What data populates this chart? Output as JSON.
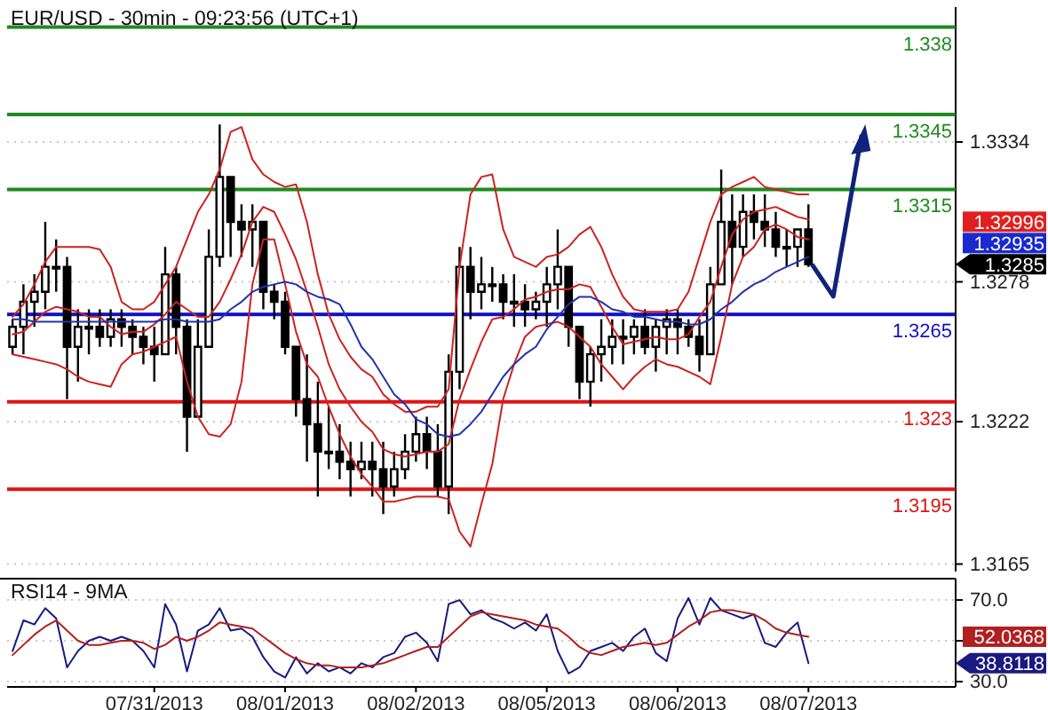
{
  "chart_data": [
    {
      "type": "candlestick",
      "title": "EUR/USD - 30min - 09:23:56 (UTC+1)",
      "color": "#000000",
      "categories": [
        null,
        null,
        null,
        null,
        null,
        null,
        null,
        null,
        null,
        null,
        null,
        null,
        null,
        null,
        null,
        null,
        null,
        null,
        null,
        null,
        null,
        null,
        null,
        null,
        null,
        null,
        null,
        null,
        null,
        null,
        null,
        null,
        null,
        null,
        null,
        null,
        null,
        null,
        null,
        null,
        null,
        null,
        null,
        null,
        null,
        null,
        null,
        null,
        null,
        null,
        null,
        null,
        null,
        null,
        null,
        null,
        null,
        null,
        null,
        null,
        null,
        null,
        null,
        null,
        null,
        null,
        null,
        null,
        null,
        null,
        null,
        null,
        null,
        null,
        null,
        null,
        null,
        null,
        null,
        null,
        null,
        null,
        null,
        null,
        null,
        null,
        null
      ],
      "ohlc": [
        [
          1.3252,
          1.3263,
          1.3249,
          1.326
        ],
        [
          1.326,
          1.3277,
          1.3249,
          1.327
        ],
        [
          1.327,
          1.3281,
          1.326,
          1.3274
        ],
        [
          1.3274,
          1.3302,
          1.3267,
          1.3284
        ],
        [
          1.3284,
          1.3295,
          1.3274,
          1.3284
        ],
        [
          1.3284,
          1.3288,
          1.3231,
          1.3252
        ],
        [
          1.3252,
          1.3267,
          1.3238,
          1.326
        ],
        [
          1.326,
          1.3267,
          1.3249,
          1.326
        ],
        [
          1.326,
          1.3267,
          1.3252,
          1.3256
        ],
        [
          1.3256,
          1.3267,
          1.3252,
          1.3263
        ],
        [
          1.3263,
          1.3267,
          1.3252,
          1.326
        ],
        [
          1.326,
          1.3263,
          1.3249,
          1.3256
        ],
        [
          1.3256,
          1.326,
          1.3245,
          1.3252
        ],
        [
          1.3252,
          1.326,
          1.3238,
          1.3249
        ],
        [
          1.3249,
          1.3292,
          1.3249,
          1.3281
        ],
        [
          1.3281,
          1.3284,
          1.3249,
          1.326
        ],
        [
          1.326,
          1.3263,
          1.321,
          1.3224
        ],
        [
          1.3224,
          1.3263,
          1.3224,
          1.3252
        ],
        [
          1.3252,
          1.3299,
          1.3252,
          1.3288
        ],
        [
          1.3288,
          1.3341,
          1.3284,
          1.332
        ],
        [
          1.332,
          1.332,
          1.3288,
          1.3302
        ],
        [
          1.3302,
          1.3309,
          1.3288,
          1.3299
        ],
        [
          1.3299,
          1.3309,
          1.3284,
          1.3302
        ],
        [
          1.3302,
          1.3302,
          1.3267,
          1.3274
        ],
        [
          1.3274,
          1.3277,
          1.3263,
          1.327
        ],
        [
          1.327,
          1.3274,
          1.3249,
          1.3252
        ],
        [
          1.3252,
          1.3252,
          1.3224,
          1.3231
        ],
        [
          1.3231,
          1.3249,
          1.3206,
          1.3221
        ],
        [
          1.3221,
          1.3238,
          1.3192,
          1.321
        ],
        [
          1.321,
          1.3228,
          1.3203,
          1.321
        ],
        [
          1.321,
          1.3221,
          1.3199,
          1.3206
        ],
        [
          1.3206,
          1.3214,
          1.3192,
          1.3203
        ],
        [
          1.3203,
          1.3214,
          1.3199,
          1.3206
        ],
        [
          1.3206,
          1.3214,
          1.3192,
          1.3203
        ],
        [
          1.3203,
          1.3214,
          1.3185,
          1.3196
        ],
        [
          1.3196,
          1.321,
          1.3192,
          1.3203
        ],
        [
          1.3203,
          1.3217,
          1.3199,
          1.321
        ],
        [
          1.321,
          1.3224,
          1.3206,
          1.3217
        ],
        [
          1.3217,
          1.3224,
          1.3203,
          1.321
        ],
        [
          1.321,
          1.3221,
          1.3192,
          1.3196
        ],
        [
          1.3196,
          1.3249,
          1.3185,
          1.3242
        ],
        [
          1.3242,
          1.3292,
          1.3235,
          1.3284
        ],
        [
          1.3284,
          1.3292,
          1.3263,
          1.3274
        ],
        [
          1.3274,
          1.3288,
          1.3267,
          1.3277
        ],
        [
          1.3277,
          1.3284,
          1.327,
          1.3277
        ],
        [
          1.3277,
          1.3281,
          1.3263,
          1.327
        ],
        [
          1.327,
          1.3281,
          1.326,
          1.327
        ],
        [
          1.327,
          1.3277,
          1.326,
          1.3267
        ],
        [
          1.3267,
          1.3274,
          1.3263,
          1.327
        ],
        [
          1.327,
          1.3284,
          1.326,
          1.3277
        ],
        [
          1.3277,
          1.3299,
          1.3267,
          1.3284
        ],
        [
          1.3284,
          1.3284,
          1.3252,
          1.326
        ],
        [
          1.326,
          1.326,
          1.3231,
          1.3238
        ],
        [
          1.3238,
          1.3252,
          1.3228,
          1.3249
        ],
        [
          1.3249,
          1.3263,
          1.3238,
          1.3252
        ],
        [
          1.3252,
          1.3263,
          1.3245,
          1.3256
        ],
        [
          1.3256,
          1.3263,
          1.3245,
          1.3256
        ],
        [
          1.3256,
          1.3263,
          1.3249,
          1.326
        ],
        [
          1.326,
          1.3267,
          1.3249,
          1.3252
        ],
        [
          1.3252,
          1.3263,
          1.3242,
          1.326
        ],
        [
          1.326,
          1.3267,
          1.3249,
          1.3263
        ],
        [
          1.3263,
          1.3267,
          1.3249,
          1.326
        ],
        [
          1.326,
          1.3263,
          1.3252,
          1.3256
        ],
        [
          1.3256,
          1.3263,
          1.3242,
          1.3249
        ],
        [
          1.3249,
          1.3284,
          1.3249,
          1.3277
        ],
        [
          1.3277,
          1.3323,
          1.3277,
          1.3302
        ],
        [
          1.3302,
          1.3313,
          1.3277,
          1.3292
        ],
        [
          1.3292,
          1.3313,
          1.3288,
          1.3306
        ],
        [
          1.3306,
          1.3313,
          1.3295,
          1.3302
        ],
        [
          1.3302,
          1.3313,
          1.3292,
          1.3299
        ],
        [
          1.3299,
          1.3306,
          1.3288,
          1.3292
        ],
        [
          1.3292,
          1.3299,
          1.3284,
          1.3292
        ],
        [
          1.3292,
          1.3299,
          1.3284,
          1.3299
        ],
        [
          1.3299,
          1.3309,
          1.3284,
          1.3285
        ],
        null,
        null,
        null,
        null,
        null,
        null,
        null,
        null,
        null,
        null,
        null,
        null,
        null
      ],
      "series": [
        {
          "type": "line",
          "color": "#cc2222",
          "values": [
            1.3264,
            1.3269,
            1.3277,
            1.3286,
            1.3292,
            1.3292,
            1.3292,
            1.3292,
            1.3291,
            1.3284,
            1.327,
            1.3267,
            1.3267,
            1.327,
            1.3277,
            1.3284,
            1.3295,
            1.3306,
            1.3313,
            1.3323,
            1.3338,
            1.334,
            1.3327,
            1.3321,
            1.3318,
            1.3316,
            1.3317,
            1.3302,
            1.3281,
            1.3265,
            1.3255,
            1.3248,
            1.3243,
            1.324,
            1.3233,
            1.3229,
            1.3226,
            1.3226,
            1.3228,
            1.3228,
            1.3235,
            1.3284,
            1.3313,
            1.332,
            1.3321,
            1.3299,
            1.3288,
            1.3286,
            1.3284,
            1.3288,
            1.3289,
            1.3292,
            1.3297,
            1.33,
            1.3292,
            1.3281,
            1.3272,
            1.3267,
            1.3266,
            1.3266,
            1.3266,
            1.3267,
            1.3274,
            1.3288,
            1.3302,
            1.3313,
            1.3316,
            1.3318,
            1.332,
            1.3316,
            1.3315,
            1.3314,
            1.3313,
            1.3313,
            null,
            null,
            null,
            null,
            null,
            null,
            null,
            null,
            null,
            null,
            null,
            null,
            null
          ]
        },
        {
          "type": "line",
          "color": "#cc2222",
          "values": [
            1.3257,
            1.3258,
            1.3262,
            1.3266,
            1.3268,
            1.3267,
            1.3266,
            1.3264,
            1.3264,
            1.326,
            1.3257,
            1.3258,
            1.3258,
            1.3261,
            1.3265,
            1.327,
            1.3267,
            1.3264,
            1.3264,
            1.327,
            1.3279,
            1.3289,
            1.3302,
            1.3308,
            1.3306,
            1.3297,
            1.3287,
            1.3274,
            1.326,
            1.3245,
            1.3235,
            1.3228,
            1.3222,
            1.3218,
            1.3211,
            1.3209,
            1.3208,
            1.3209,
            1.321,
            1.321,
            1.3213,
            1.3231,
            1.3243,
            1.3254,
            1.3263,
            1.3264,
            1.3267,
            1.3271,
            1.3272,
            1.3274,
            1.3275,
            1.3275,
            1.3277,
            1.3276,
            1.3268,
            1.326,
            1.3253,
            1.3254,
            1.3255,
            1.3256,
            1.3255,
            1.3255,
            1.3257,
            1.3264,
            1.327,
            1.3284,
            1.3297,
            1.3303,
            1.3306,
            1.3307,
            1.3308,
            1.3306,
            1.3304,
            1.3303,
            null,
            null,
            null,
            null,
            null,
            null,
            null,
            null,
            null,
            null,
            null,
            null,
            null
          ]
        },
        {
          "type": "line",
          "color": "#cc2222",
          "values": [
            1.3249,
            1.3248,
            1.3247,
            1.3246,
            1.3245,
            1.3243,
            1.324,
            1.3238,
            1.3237,
            1.3236,
            1.3245,
            1.3249,
            1.325,
            1.3252,
            1.3254,
            1.3256,
            1.3238,
            1.3224,
            1.3217,
            1.3216,
            1.3221,
            1.3238,
            1.3277,
            1.3295,
            1.3295,
            1.3277,
            1.3258,
            1.3245,
            1.324,
            1.3228,
            1.3217,
            1.3208,
            1.3201,
            1.3196,
            1.319,
            1.319,
            1.3191,
            1.3192,
            1.3192,
            1.3192,
            1.3191,
            1.3178,
            1.3172,
            1.3189,
            1.3205,
            1.3231,
            1.3245,
            1.3256,
            1.326,
            1.3261,
            1.3262,
            1.326,
            1.3256,
            1.3252,
            1.3245,
            1.324,
            1.3235,
            1.324,
            1.3244,
            1.3247,
            1.3245,
            1.3244,
            1.3242,
            1.324,
            1.3237,
            1.3256,
            1.3277,
            1.3288,
            1.3292,
            1.3299,
            1.3301,
            1.3299,
            1.3296,
            1.3295,
            null,
            null,
            null,
            null,
            null,
            null,
            null,
            null,
            null,
            null,
            null,
            null,
            null
          ]
        },
        {
          "type": "line",
          "color": "#2233aa",
          "values": [
            1.3263,
            1.3263,
            1.3262,
            1.3262,
            1.3262,
            1.3262,
            1.3262,
            1.3262,
            1.3262,
            1.3262,
            1.3262,
            1.3262,
            1.3262,
            1.3262,
            1.3263,
            1.3263,
            1.3262,
            1.3262,
            1.3262,
            1.3263,
            1.3267,
            1.327,
            1.3274,
            1.3276,
            1.3277,
            1.3278,
            1.3277,
            1.3274,
            1.3272,
            1.3271,
            1.3269,
            1.3261,
            1.3252,
            1.3247,
            1.324,
            1.3233,
            1.3229,
            1.3223,
            1.3221,
            1.3217,
            1.3216,
            1.3217,
            1.3221,
            1.3226,
            1.3233,
            1.324,
            1.3245,
            1.3249,
            1.3252,
            1.3259,
            1.3264,
            1.3269,
            1.3272,
            1.3272,
            1.327,
            1.3267,
            1.3266,
            1.3264,
            1.3264,
            1.3263,
            1.3262,
            1.3262,
            1.3261,
            1.3261,
            1.3263,
            1.3267,
            1.327,
            1.3274,
            1.3277,
            1.3279,
            1.3282,
            1.3284,
            1.3286,
            1.3288,
            null,
            null,
            null,
            null,
            null,
            null,
            null,
            null,
            null,
            null,
            null,
            null,
            null
          ]
        }
      ],
      "ylim": [
        1.3162,
        1.3388
      ],
      "yticks": [
        1.3334,
        1.3278,
        1.3222,
        1.3165
      ],
      "grid": "y",
      "tick_labels": "y",
      "ref_lines": [
        {
          "axis": "y",
          "value": 1.338,
          "label": "1.338",
          "color": "#1f8a1f"
        },
        {
          "axis": "y",
          "value": 1.3345,
          "label": "1.3345",
          "color": "#1f8a1f"
        },
        {
          "axis": "y",
          "value": 1.3315,
          "label": "1.3315",
          "color": "#1f8a1f"
        },
        {
          "axis": "y",
          "value": 1.3265,
          "label": "1.3265",
          "color": "#1010c0"
        },
        {
          "axis": "y",
          "value": 1.323,
          "label": "1.323",
          "color": "#dd1515"
        },
        {
          "axis": "y",
          "value": 1.3195,
          "label": "1.3195",
          "color": "#dd1515"
        }
      ],
      "annotations": [
        "1.32996",
        "1.32935",
        "1.3285"
      ]
    },
    {
      "type": "line",
      "title": "RSI14 - 9MA",
      "categories": [
        null,
        null,
        null,
        null,
        null,
        null,
        null,
        null,
        null,
        null,
        null,
        null,
        null,
        "07/31/2013",
        null,
        null,
        null,
        null,
        null,
        null,
        null,
        null,
        null,
        null,
        null,
        "08/01/2013",
        null,
        null,
        null,
        null,
        null,
        null,
        null,
        null,
        null,
        null,
        null,
        "08/02/2013",
        null,
        null,
        null,
        null,
        null,
        null,
        null,
        null,
        null,
        null,
        null,
        "08/05/2013",
        null,
        null,
        null,
        null,
        null,
        null,
        null,
        null,
        null,
        null,
        null,
        "08/06/2013",
        null,
        null,
        null,
        null,
        null,
        null,
        null,
        null,
        null,
        null,
        null,
        "08/07/2013",
        null,
        null,
        null,
        null,
        null,
        null,
        null,
        null,
        null,
        null,
        null,
        null,
        null
      ],
      "series": [
        {
          "color": "#1a1a80",
          "values": [
            45,
            60,
            58,
            66,
            61,
            37,
            45,
            50,
            52,
            50,
            52,
            50,
            45,
            37,
            68,
            58,
            35,
            55,
            58,
            66,
            55,
            56,
            52,
            42,
            35,
            32,
            42,
            34,
            39,
            35,
            37,
            34,
            39,
            37,
            42,
            44,
            52,
            54,
            49,
            40,
            68,
            70,
            63,
            65,
            61,
            59,
            56,
            59,
            55,
            63,
            45,
            34,
            37,
            45,
            47,
            49,
            45,
            52,
            56,
            44,
            40,
            61,
            71,
            58,
            71,
            65,
            63,
            61,
            63,
            49,
            47,
            54,
            59,
            39,
            null,
            null,
            null,
            null,
            null,
            null,
            null,
            null,
            null,
            null,
            null,
            null,
            null
          ]
        },
        {
          "color": "#b02020",
          "values": [
            43,
            48,
            53,
            57,
            60,
            55,
            50,
            48,
            48,
            49,
            50,
            50,
            49,
            46,
            48,
            52,
            50,
            52,
            55,
            59,
            58,
            57,
            56,
            52,
            48,
            44,
            41,
            39,
            38,
            38,
            37,
            37,
            37,
            38,
            39,
            41,
            43,
            45,
            47,
            47,
            52,
            57,
            62,
            64,
            63,
            62,
            61,
            60,
            58,
            57,
            56,
            52,
            47,
            44,
            43,
            45,
            47,
            48,
            49,
            48,
            49,
            53,
            57,
            60,
            64,
            65,
            65,
            64,
            63,
            60,
            56,
            54,
            53,
            52,
            null,
            null,
            null,
            null,
            null,
            null,
            null,
            null,
            null,
            null,
            null,
            null,
            null
          ]
        }
      ],
      "ylim": [
        27.4,
        79.6
      ],
      "yticks": [
        {
          "value": 70,
          "label": "70.0"
        },
        {
          "value": 50,
          "label": null
        },
        {
          "value": 30,
          "label": "30.0"
        }
      ],
      "grid": "y",
      "annotations": [
        "52.0368",
        "38.8118"
      ]
    }
  ]
}
